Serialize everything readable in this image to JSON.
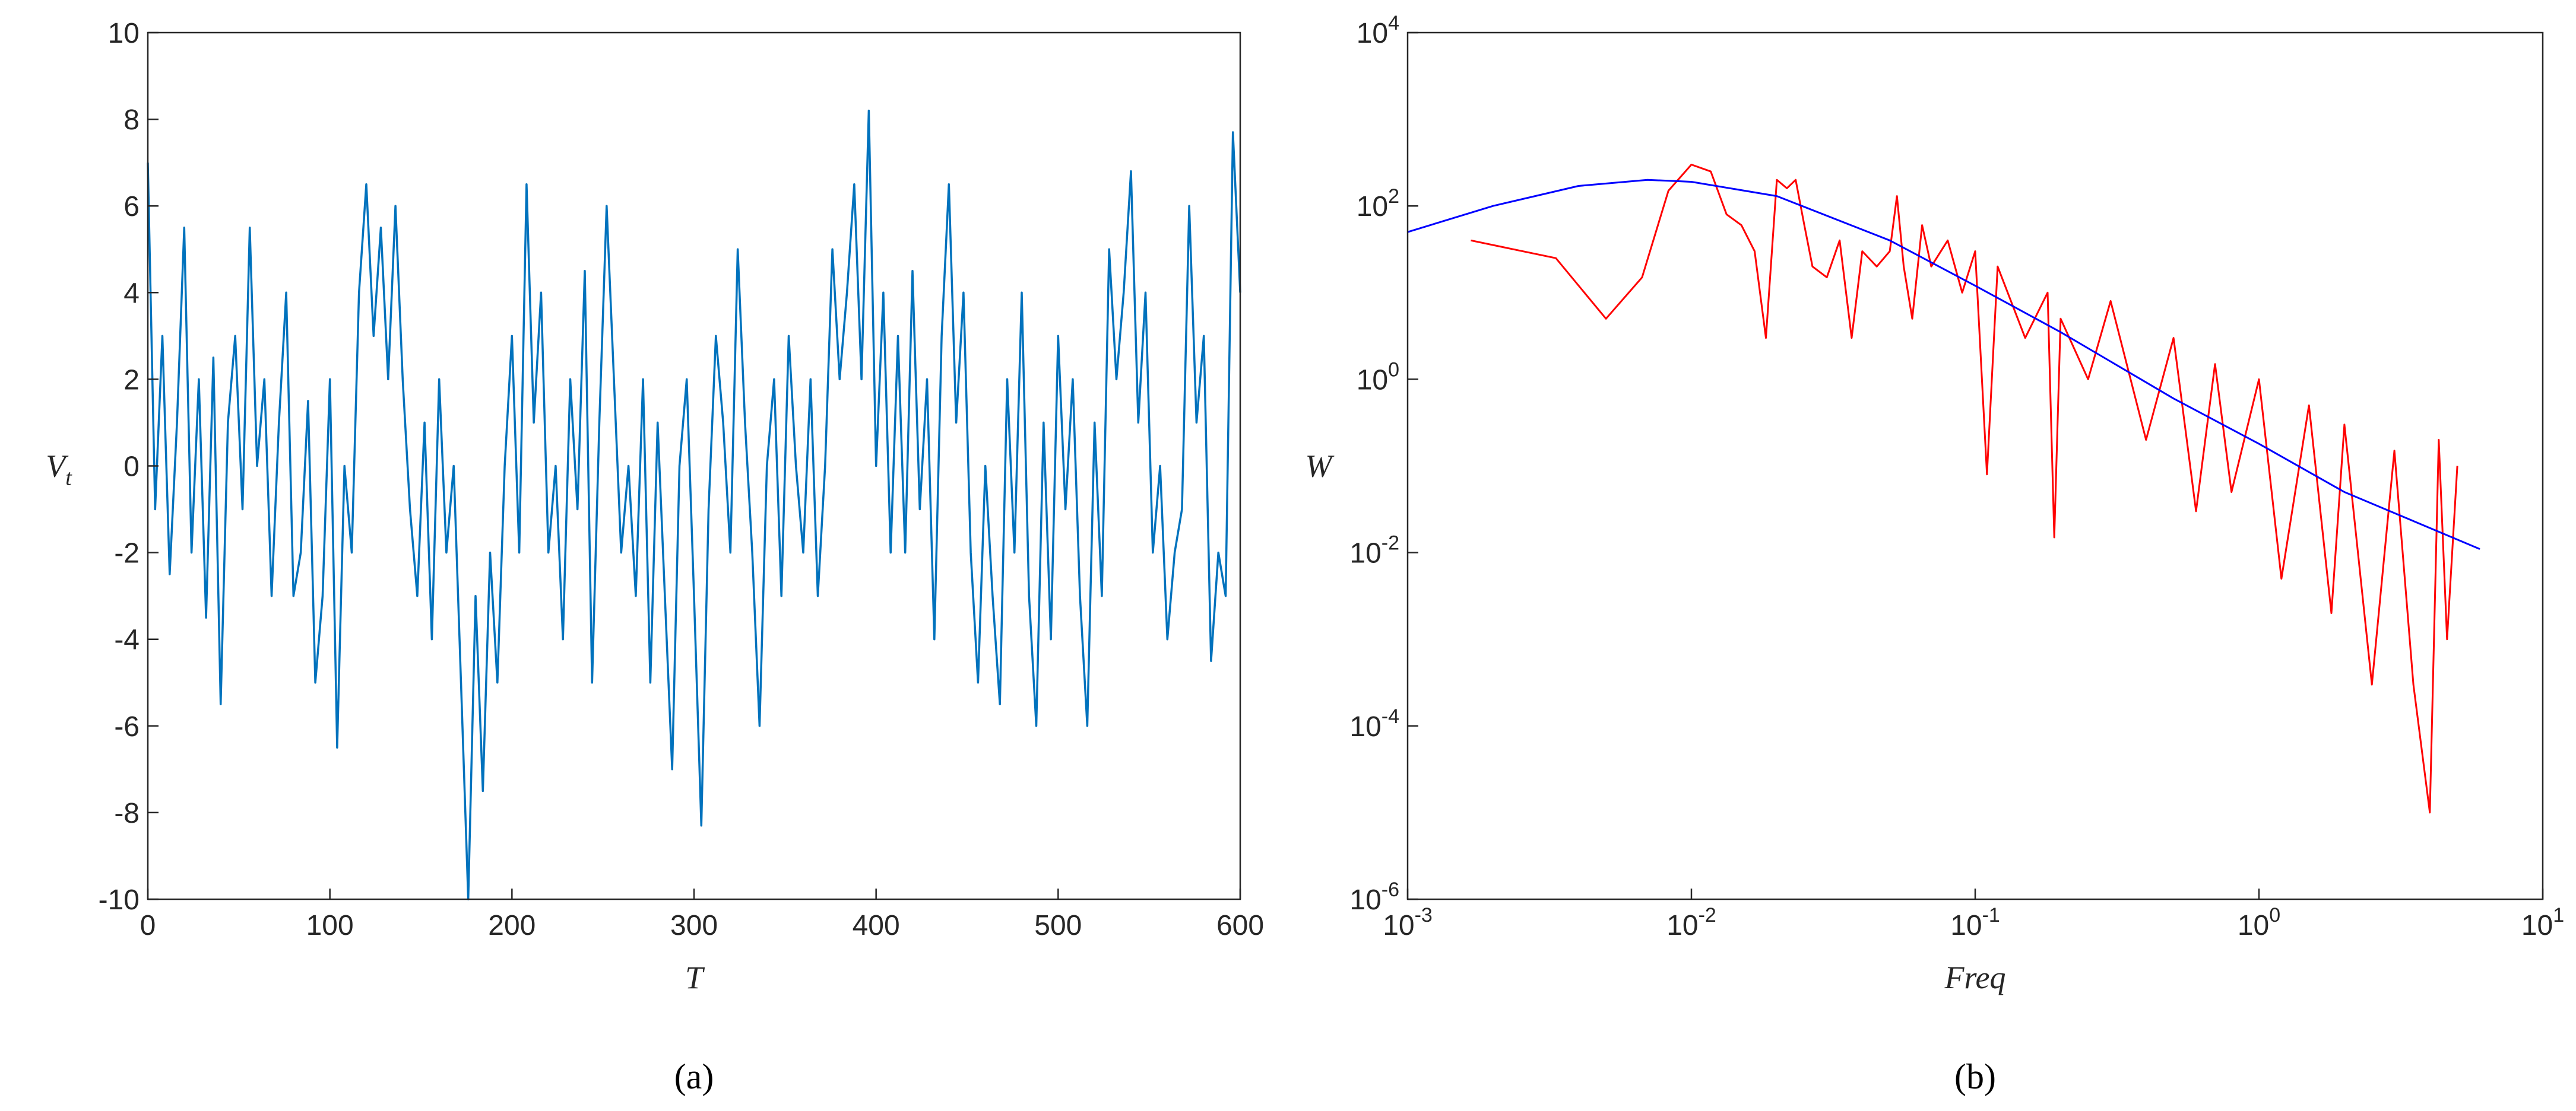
{
  "chart_data": [
    {
      "type": "line",
      "caption": "(a)",
      "xlabel": "T",
      "ylabel": "V",
      "ylabel_sub": "t",
      "xlim": [
        0,
        600
      ],
      "ylim": [
        -10,
        10
      ],
      "xticks": [
        0,
        100,
        200,
        300,
        400,
        500,
        600
      ],
      "yticks": [
        -10,
        -8,
        -6,
        -4,
        -2,
        0,
        2,
        4,
        6,
        8,
        10
      ],
      "series": [
        {
          "color": "#0072bd",
          "x": [
            0,
            4,
            8,
            12,
            16,
            20,
            24,
            28,
            32,
            36,
            40,
            44,
            48,
            52,
            56,
            60,
            64,
            68,
            72,
            76,
            80,
            84,
            88,
            92,
            96,
            100,
            104,
            108,
            112,
            116,
            120,
            124,
            128,
            132,
            136,
            140,
            144,
            148,
            152,
            156,
            160,
            164,
            168,
            172,
            176,
            180,
            184,
            188,
            192,
            196,
            200,
            204,
            208,
            212,
            216,
            220,
            224,
            228,
            232,
            236,
            240,
            244,
            248,
            252,
            256,
            260,
            264,
            268,
            272,
            276,
            280,
            284,
            288,
            292,
            296,
            300,
            304,
            308,
            312,
            316,
            320,
            324,
            328,
            332,
            336,
            340,
            344,
            348,
            352,
            356,
            360,
            364,
            368,
            372,
            376,
            380,
            384,
            388,
            392,
            396,
            400,
            404,
            408,
            412,
            416,
            420,
            424,
            428,
            432,
            436,
            440,
            444,
            448,
            452,
            456,
            460,
            464,
            468,
            472,
            476,
            480,
            484,
            488,
            492,
            496,
            500,
            504,
            508,
            512,
            516,
            520,
            524,
            528,
            532,
            536,
            540,
            544,
            548,
            552,
            556,
            560,
            564,
            568,
            572,
            576,
            580,
            584,
            588,
            592,
            596,
            600
          ],
          "values": [
            7,
            -1,
            3,
            -2.5,
            1,
            5.5,
            -2,
            2,
            -3.5,
            2.5,
            -5.5,
            1,
            3,
            -1,
            5.5,
            0,
            2,
            -3,
            1,
            4,
            -3,
            -2,
            1.5,
            -5,
            -3,
            2,
            -6.5,
            0,
            -2,
            4,
            6.5,
            3,
            5.5,
            2,
            6,
            2,
            -1,
            -3,
            1,
            -4,
            2,
            -2,
            0,
            -5,
            -10,
            -3,
            -7.5,
            -2,
            -5,
            0,
            3,
            -2,
            6.5,
            1,
            4,
            -2,
            0,
            -4,
            2,
            -1,
            4.5,
            -5,
            1,
            6,
            2,
            -2,
            0,
            -3,
            2,
            -5,
            1,
            -3,
            -7,
            0,
            2,
            -3,
            -8.3,
            -1,
            3,
            1,
            -2,
            5,
            1,
            -2,
            -6,
            0,
            2,
            -3,
            3,
            0,
            -2,
            2,
            -3,
            0,
            5,
            2,
            4,
            6.5,
            2,
            8.2,
            0,
            4,
            -2,
            3,
            -2,
            4.5,
            -1,
            2,
            -4,
            3,
            6.5,
            1,
            4,
            -2,
            -5,
            0,
            -3,
            -5.5,
            2,
            -2,
            4,
            -3,
            -6,
            1,
            -4,
            3,
            -1,
            2,
            -3,
            -6,
            1,
            -3,
            5,
            2,
            4,
            6.8,
            1,
            4,
            -2,
            0,
            -4,
            -2,
            -1,
            6,
            1,
            3,
            -4.5,
            -2,
            -3,
            7.7,
            4
          ]
        }
      ]
    },
    {
      "type": "line",
      "caption": "(b)",
      "xlabel": "Freq",
      "ylabel": "W",
      "xscale": "log",
      "yscale": "log",
      "xlim": [
        0.001,
        10
      ],
      "ylim": [
        1e-06,
        10000
      ],
      "xticks": [
        {
          "value": 0.001,
          "label": "10",
          "sup": "-3"
        },
        {
          "value": 0.01,
          "label": "10",
          "sup": "-2"
        },
        {
          "value": 0.1,
          "label": "10",
          "sup": "-1"
        },
        {
          "value": 1,
          "label": "10",
          "sup": "0"
        },
        {
          "value": 10,
          "label": "10",
          "sup": "1"
        }
      ],
      "yticks": [
        {
          "value": 1e-06,
          "label": "10",
          "sup": "-6"
        },
        {
          "value": 0.0001,
          "label": "10",
          "sup": "-4"
        },
        {
          "value": 0.01,
          "label": "10",
          "sup": "-2"
        },
        {
          "value": 1,
          "label": "10",
          "sup": "0"
        },
        {
          "value": 100,
          "label": "10",
          "sup": "2"
        },
        {
          "value": 10000,
          "label": "10",
          "sup": "4"
        }
      ],
      "series": [
        {
          "color": "#ff0000",
          "x": [
            0.00167,
            0.00333,
            0.005,
            0.0067,
            0.0083,
            0.01,
            0.0117,
            0.0133,
            0.015,
            0.0167,
            0.0183,
            0.02,
            0.0217,
            0.0233,
            0.025,
            0.0267,
            0.03,
            0.0333,
            0.0367,
            0.04,
            0.045,
            0.05,
            0.053,
            0.056,
            0.06,
            0.065,
            0.07,
            0.08,
            0.09,
            0.1,
            0.11,
            0.12,
            0.15,
            0.18,
            0.19,
            0.2,
            0.25,
            0.3,
            0.4,
            0.5,
            0.6,
            0.7,
            0.8,
            1,
            1.2,
            1.5,
            1.8,
            2,
            2.5,
            3,
            3.5,
            4,
            4.3,
            4.6,
            5
          ],
          "values": [
            40,
            25,
            5,
            15,
            150,
            300,
            250,
            80,
            60,
            30,
            3,
            200,
            160,
            200,
            60,
            20,
            15,
            40,
            3,
            30,
            20,
            30,
            130,
            20,
            5,
            60,
            20,
            40,
            10,
            30,
            0.08,
            20,
            3,
            10,
            0.015,
            5,
            1,
            8,
            0.2,
            3,
            0.03,
            1.5,
            0.05,
            1,
            0.005,
            0.5,
            0.002,
            0.3,
            0.0003,
            0.15,
            0.0003,
            1e-05,
            0.2,
            0.001,
            0.1
          ]
        },
        {
          "color": "#0000ff",
          "x": [
            0.001,
            0.002,
            0.004,
            0.007,
            0.01,
            0.02,
            0.05,
            0.1,
            0.2,
            0.5,
            1,
            2,
            6
          ],
          "values": [
            50,
            100,
            170,
            200,
            190,
            130,
            40,
            12,
            3.5,
            0.6,
            0.18,
            0.05,
            0.011
          ]
        }
      ]
    }
  ]
}
